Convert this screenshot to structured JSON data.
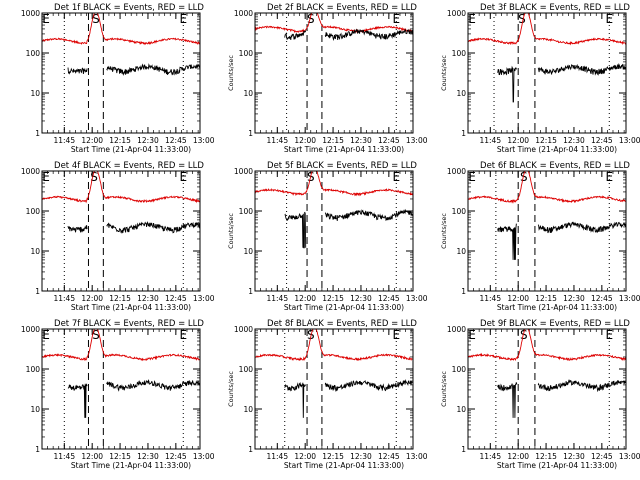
{
  "chart_data": {
    "type": "line",
    "y_scale": "log",
    "ylim": [
      1,
      1000
    ],
    "y_ticks": [
      {
        "value": 1,
        "label": "1"
      },
      {
        "value": 10,
        "label": "10"
      },
      {
        "value": 100,
        "label": "100"
      },
      {
        "value": 1000,
        "label": "1000"
      }
    ],
    "x_range_min": [
      0,
      85
    ],
    "x_ticks": [
      {
        "value": 12,
        "label": "11:45"
      },
      {
        "value": 27,
        "label": "12:00"
      },
      {
        "value": 42,
        "label": "12:15"
      },
      {
        "value": 57,
        "label": "12:30"
      },
      {
        "value": 72,
        "label": "12:45"
      },
      {
        "value": 87,
        "label": "13:00"
      }
    ],
    "xlabel": "Start Time (21-Apr-04 11:33:00)",
    "ylabel": "Counts/sec",
    "markers": {
      "start": "S",
      "end": "E"
    },
    "series_legend": {
      "events": "BLACK = Events",
      "lld": "RED = LLD"
    },
    "panels": [
      {
        "title": "Det 1f BLACK = Events, RED = LLD",
        "show_ylabel": false,
        "red_base": 200,
        "black_base": 40,
        "black_start": 14,
        "s_time": 29,
        "e_time": 76,
        "lines": [
          {
            "t": 12,
            "style": "dotted"
          },
          {
            "t": 25,
            "style": "dashed"
          },
          {
            "t": 33,
            "style": "dashed"
          },
          {
            "t": 76,
            "style": "dotted"
          }
        ]
      },
      {
        "title": "Det 2f BLACK = Events, RED = LLD",
        "show_ylabel": true,
        "red_base": 400,
        "black_base": 300,
        "black_start": 16,
        "s_time": 30,
        "e_time": 76,
        "lines": [
          {
            "t": 17,
            "style": "dotted"
          },
          {
            "t": 28,
            "style": "dashed"
          },
          {
            "t": 36,
            "style": "dashed"
          },
          {
            "t": 76,
            "style": "dotted"
          }
        ]
      },
      {
        "title": "Det 3f BLACK = Events, RED = LLD",
        "show_ylabel": true,
        "red_base": 200,
        "black_base": 40,
        "black_start": 16,
        "s_time": 29,
        "e_time": 76,
        "lines": [
          {
            "t": 14,
            "style": "dotted"
          },
          {
            "t": 27,
            "style": "dashed"
          },
          {
            "t": 36,
            "style": "dashed"
          },
          {
            "t": 76,
            "style": "dotted"
          }
        ]
      },
      {
        "title": "Det 4f BLACK = Events, RED = LLD",
        "show_ylabel": false,
        "red_base": 200,
        "black_base": 40,
        "black_start": 14,
        "s_time": 28,
        "e_time": 76,
        "lines": [
          {
            "t": 12,
            "style": "dotted"
          },
          {
            "t": 25,
            "style": "dashed"
          },
          {
            "t": 33,
            "style": "dashed"
          },
          {
            "t": 76,
            "style": "dotted"
          }
        ]
      },
      {
        "title": "Det 5f BLACK = Events, RED = LLD",
        "show_ylabel": true,
        "red_base": 300,
        "black_base": 80,
        "black_start": 16,
        "s_time": 30,
        "e_time": 76,
        "lines": [
          {
            "t": 17,
            "style": "dotted"
          },
          {
            "t": 28,
            "style": "dashed"
          },
          {
            "t": 36,
            "style": "dashed"
          },
          {
            "t": 76,
            "style": "dotted"
          }
        ]
      },
      {
        "title": "Det 6f BLACK = Events, RED = LLD",
        "show_ylabel": true,
        "red_base": 200,
        "black_base": 40,
        "black_start": 16,
        "s_time": 30,
        "e_time": 76,
        "lines": [
          {
            "t": 15,
            "style": "dotted"
          },
          {
            "t": 27,
            "style": "dashed"
          },
          {
            "t": 36,
            "style": "dashed"
          },
          {
            "t": 76,
            "style": "dotted"
          }
        ]
      },
      {
        "title": "Det 7f BLACK = Events, RED = LLD",
        "show_ylabel": false,
        "red_base": 200,
        "black_base": 40,
        "black_start": 14,
        "s_time": 29,
        "e_time": 76,
        "lines": [
          {
            "t": 12,
            "style": "dotted"
          },
          {
            "t": 25,
            "style": "dashed"
          },
          {
            "t": 33,
            "style": "dashed"
          },
          {
            "t": 76,
            "style": "dotted"
          }
        ]
      },
      {
        "title": "Det 8f BLACK = Events, RED = LLD",
        "show_ylabel": true,
        "red_base": 200,
        "black_base": 40,
        "black_start": 16,
        "s_time": 30,
        "e_time": 76,
        "lines": [
          {
            "t": 16,
            "style": "dotted"
          },
          {
            "t": 28,
            "style": "dashed"
          },
          {
            "t": 36,
            "style": "dashed"
          },
          {
            "t": 76,
            "style": "dotted"
          }
        ]
      },
      {
        "title": "Det 9f BLACK = Events, RED = LLD",
        "show_ylabel": true,
        "red_base": 200,
        "black_base": 40,
        "black_start": 16,
        "s_time": 30,
        "e_time": 76,
        "lines": [
          {
            "t": 15,
            "style": "dotted"
          },
          {
            "t": 27,
            "style": "dashed"
          },
          {
            "t": 36,
            "style": "dashed"
          },
          {
            "t": 76,
            "style": "dotted"
          }
        ]
      }
    ]
  },
  "colors": {
    "events": "#000000",
    "lld": "#dd0000",
    "background": "#ffffff"
  }
}
